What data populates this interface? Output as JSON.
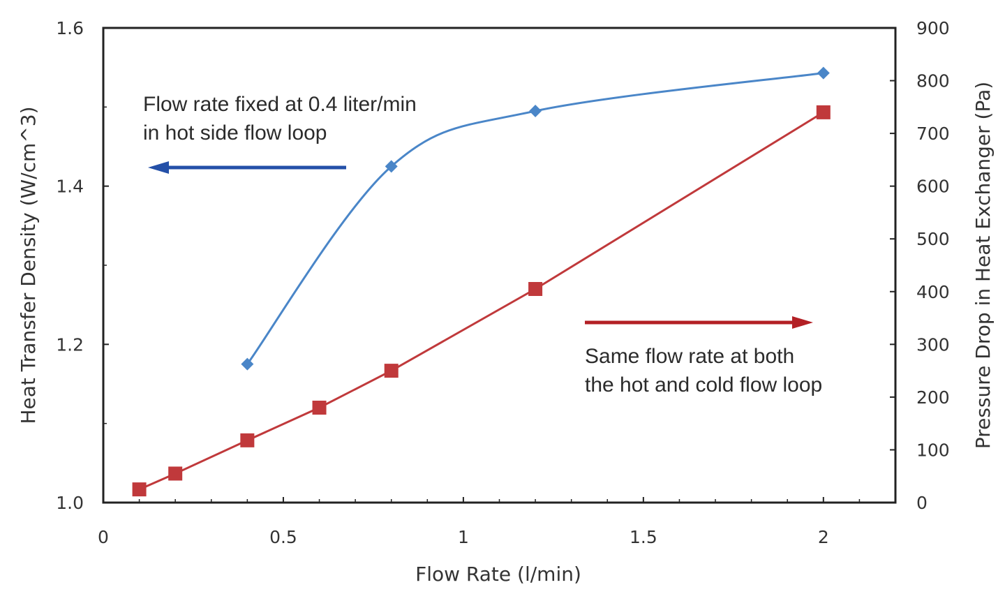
{
  "chart_data": {
    "type": "line",
    "title": "",
    "xlabel": "Flow Rate (l/min)",
    "ylabel": "Heat Transfer Density (W/cm^3)",
    "ylabel_right": "Pressure  Drop in Heat Exchanger (Pa)",
    "xlim": [
      0,
      2.2
    ],
    "ylim": [
      1.0,
      1.6
    ],
    "ylim_right": [
      0,
      900
    ],
    "x_ticks": [
      "0",
      "0.5",
      "1",
      "1.5",
      "2"
    ],
    "x_tick_values": [
      0,
      0.5,
      1,
      1.5,
      2
    ],
    "y_ticks": [
      "1.0",
      "1.2",
      "1.4",
      "1.6"
    ],
    "y_tick_values": [
      1.0,
      1.2,
      1.4,
      1.6
    ],
    "y_right_ticks": [
      "0",
      "100",
      "200",
      "300",
      "400",
      "500",
      "600",
      "700",
      "800",
      "900"
    ],
    "y_right_tick_values": [
      0,
      100,
      200,
      300,
      400,
      500,
      600,
      700,
      800,
      900
    ],
    "grid": false,
    "legend": "none",
    "series": [
      {
        "axis": "left",
        "color": "#4a86c8",
        "marker": "diamond",
        "smooth": true,
        "x": [
          0.4,
          0.8,
          1.2,
          2.0
        ],
        "y": [
          1.175,
          1.425,
          1.495,
          1.543
        ]
      },
      {
        "axis": "right",
        "color": "#c0393b",
        "marker": "square",
        "smooth": false,
        "x": [
          0.1,
          0.2,
          0.4,
          0.6,
          0.8,
          1.2,
          2.0
        ],
        "y": [
          25,
          55,
          118,
          180,
          250,
          405,
          740
        ]
      }
    ],
    "annotations": [
      {
        "lines": [
          "Flow rate fixed at 0.4 liter/min",
          "in hot side flow loop"
        ],
        "arrow": "left",
        "arrow_color": "#2450a8"
      },
      {
        "lines": [
          "Same flow rate at both",
          "the hot and cold flow loop"
        ],
        "arrow": "right",
        "arrow_color": "#b32025"
      }
    ]
  }
}
